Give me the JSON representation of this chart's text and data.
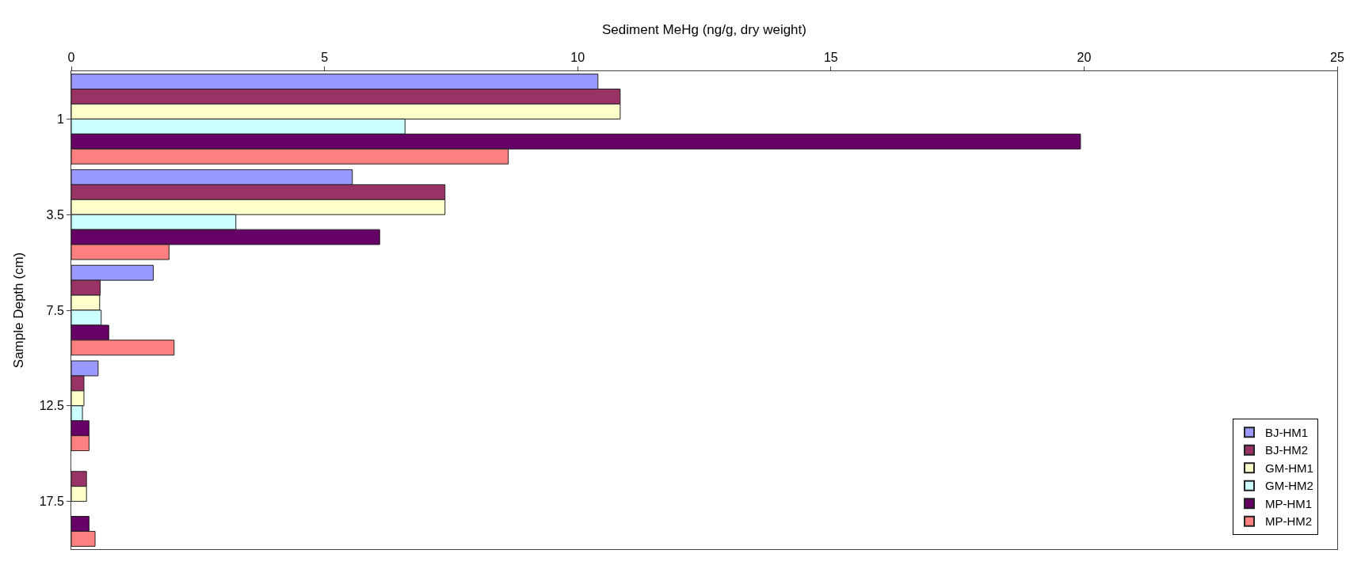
{
  "chart_data": {
    "type": "bar",
    "orientation": "horizontal",
    "xlabel": "Sediment MeHg (ng/g, dry weight)",
    "ylabel": "Sample Depth (cm)",
    "categories": [
      "1",
      "3.5",
      "7.5",
      "12.5",
      "17.5"
    ],
    "xlim": [
      0,
      25
    ],
    "xticks": [
      0,
      5,
      10,
      15,
      20,
      25
    ],
    "grid": false,
    "legend": "bottom right",
    "series": [
      {
        "name": "BJ-HM1",
        "color": "#9999ff",
        "values": [
          10.4,
          5.55,
          1.62,
          0.53,
          null
        ]
      },
      {
        "name": "BJ-HM2",
        "color": "#993366",
        "values": [
          10.84,
          7.38,
          0.57,
          0.25,
          0.3
        ]
      },
      {
        "name": "GM-HM1",
        "color": "#ffffcc",
        "values": [
          10.84,
          7.38,
          0.56,
          0.25,
          0.3
        ]
      },
      {
        "name": "GM-HM2",
        "color": "#ccffff",
        "values": [
          6.59,
          3.25,
          0.59,
          0.22,
          null
        ]
      },
      {
        "name": "MP-HM1",
        "color": "#660066",
        "values": [
          19.93,
          6.09,
          0.74,
          0.35,
          0.35
        ]
      },
      {
        "name": "MP-HM2",
        "color": "#ff8080",
        "values": [
          8.63,
          1.93,
          2.03,
          0.35,
          0.47
        ]
      }
    ]
  }
}
